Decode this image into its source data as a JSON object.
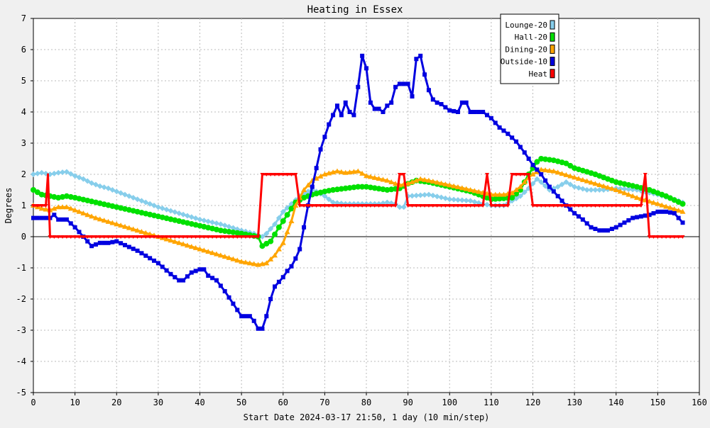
{
  "chart_data": {
    "type": "line",
    "title": "Heating in Essex",
    "xlabel": "Start Date 2024-03-17 21:50, 1 day (10 min/step)",
    "ylabel": "Degrees",
    "xlim": [
      0,
      160
    ],
    "ylim": [
      -5,
      7
    ],
    "xticks": [
      0,
      10,
      20,
      30,
      40,
      50,
      60,
      70,
      80,
      90,
      100,
      110,
      120,
      130,
      140,
      150,
      160
    ],
    "yticks": [
      -5,
      -4,
      -3,
      -2,
      -1,
      0,
      1,
      2,
      3,
      4,
      5,
      6,
      7
    ],
    "grid": true,
    "legend_position": "top-right",
    "series": [
      {
        "name": "Lounge-20",
        "color": "#87ceeb",
        "marker": "diamond",
        "points": [
          [
            0,
            2.0
          ],
          [
            2,
            2.05
          ],
          [
            4,
            2.0
          ],
          [
            6,
            2.05
          ],
          [
            8,
            2.08
          ],
          [
            10,
            1.95
          ],
          [
            12,
            1.85
          ],
          [
            14,
            1.72
          ],
          [
            16,
            1.62
          ],
          [
            18,
            1.55
          ],
          [
            20,
            1.45
          ],
          [
            25,
            1.2
          ],
          [
            30,
            0.95
          ],
          [
            35,
            0.75
          ],
          [
            40,
            0.55
          ],
          [
            45,
            0.4
          ],
          [
            50,
            0.2
          ],
          [
            53,
            0.1
          ],
          [
            55,
            0.0
          ],
          [
            56,
            0.1
          ],
          [
            58,
            0.4
          ],
          [
            60,
            0.8
          ],
          [
            62,
            1.05
          ],
          [
            64,
            1.3
          ],
          [
            66,
            1.45
          ],
          [
            67,
            1.5
          ],
          [
            68,
            1.45
          ],
          [
            70,
            1.3
          ],
          [
            72,
            1.1
          ],
          [
            75,
            1.05
          ],
          [
            80,
            1.05
          ],
          [
            83,
            1.05
          ],
          [
            85,
            1.1
          ],
          [
            87,
            1.05
          ],
          [
            88,
            0.95
          ],
          [
            89,
            0.95
          ],
          [
            90,
            1.3
          ],
          [
            95,
            1.35
          ],
          [
            100,
            1.2
          ],
          [
            105,
            1.15
          ],
          [
            108,
            1.05
          ],
          [
            110,
            1.0
          ],
          [
            113,
            1.0
          ],
          [
            115,
            1.15
          ],
          [
            117,
            1.3
          ],
          [
            119,
            1.55
          ],
          [
            121,
            1.85
          ],
          [
            122,
            1.75
          ],
          [
            124,
            1.5
          ],
          [
            126,
            1.6
          ],
          [
            128,
            1.75
          ],
          [
            130,
            1.6
          ],
          [
            133,
            1.5
          ],
          [
            137,
            1.5
          ],
          [
            140,
            1.55
          ],
          [
            145,
            1.5
          ],
          [
            150,
            1.35
          ],
          [
            155,
            1.15
          ],
          [
            156,
            1.1
          ]
        ]
      },
      {
        "name": "Hall-20",
        "color": "#00e000",
        "marker": "circle",
        "points": [
          [
            0,
            1.5
          ],
          [
            2,
            1.35
          ],
          [
            4,
            1.3
          ],
          [
            6,
            1.25
          ],
          [
            8,
            1.3
          ],
          [
            10,
            1.25
          ],
          [
            15,
            1.1
          ],
          [
            20,
            0.95
          ],
          [
            25,
            0.8
          ],
          [
            30,
            0.65
          ],
          [
            35,
            0.5
          ],
          [
            40,
            0.35
          ],
          [
            45,
            0.2
          ],
          [
            50,
            0.1
          ],
          [
            54,
            0.0
          ],
          [
            55,
            -0.3
          ],
          [
            57,
            -0.15
          ],
          [
            59,
            0.3
          ],
          [
            61,
            0.7
          ],
          [
            63,
            1.1
          ],
          [
            65,
            1.25
          ],
          [
            67,
            1.35
          ],
          [
            70,
            1.45
          ],
          [
            72,
            1.5
          ],
          [
            75,
            1.55
          ],
          [
            78,
            1.6
          ],
          [
            80,
            1.6
          ],
          [
            85,
            1.5
          ],
          [
            88,
            1.55
          ],
          [
            90,
            1.7
          ],
          [
            92,
            1.8
          ],
          [
            95,
            1.75
          ],
          [
            100,
            1.6
          ],
          [
            105,
            1.45
          ],
          [
            108,
            1.3
          ],
          [
            110,
            1.2
          ],
          [
            115,
            1.25
          ],
          [
            117,
            1.5
          ],
          [
            119,
            2.0
          ],
          [
            121,
            2.4
          ],
          [
            122,
            2.5
          ],
          [
            125,
            2.45
          ],
          [
            128,
            2.35
          ],
          [
            130,
            2.2
          ],
          [
            135,
            2.0
          ],
          [
            140,
            1.75
          ],
          [
            145,
            1.6
          ],
          [
            148,
            1.5
          ],
          [
            152,
            1.3
          ],
          [
            156,
            1.05
          ]
        ]
      },
      {
        "name": "Dining-20",
        "color": "#ffa500",
        "marker": "triangle",
        "points": [
          [
            0,
            1.0
          ],
          [
            2,
            0.9
          ],
          [
            4,
            0.85
          ],
          [
            6,
            0.95
          ],
          [
            8,
            0.95
          ],
          [
            10,
            0.85
          ],
          [
            15,
            0.6
          ],
          [
            20,
            0.4
          ],
          [
            25,
            0.2
          ],
          [
            30,
            0.0
          ],
          [
            35,
            -0.2
          ],
          [
            40,
            -0.4
          ],
          [
            45,
            -0.6
          ],
          [
            50,
            -0.8
          ],
          [
            54,
            -0.9
          ],
          [
            56,
            -0.85
          ],
          [
            58,
            -0.6
          ],
          [
            60,
            -0.2
          ],
          [
            62,
            0.5
          ],
          [
            63,
            1.0
          ],
          [
            65,
            1.5
          ],
          [
            67,
            1.8
          ],
          [
            70,
            2.0
          ],
          [
            73,
            2.1
          ],
          [
            75,
            2.05
          ],
          [
            78,
            2.1
          ],
          [
            80,
            1.95
          ],
          [
            85,
            1.8
          ],
          [
            88,
            1.65
          ],
          [
            90,
            1.7
          ],
          [
            93,
            1.85
          ],
          [
            95,
            1.8
          ],
          [
            100,
            1.65
          ],
          [
            105,
            1.5
          ],
          [
            110,
            1.35
          ],
          [
            113,
            1.35
          ],
          [
            115,
            1.4
          ],
          [
            117,
            1.6
          ],
          [
            119,
            1.9
          ],
          [
            120,
            2.0
          ],
          [
            122,
            2.15
          ],
          [
            125,
            2.1
          ],
          [
            130,
            1.9
          ],
          [
            135,
            1.7
          ],
          [
            140,
            1.5
          ],
          [
            145,
            1.25
          ],
          [
            150,
            1.05
          ],
          [
            156,
            0.8
          ]
        ]
      },
      {
        "name": "Outside-10",
        "color": "#0000e0",
        "marker": "square",
        "points": [
          [
            0,
            0.6
          ],
          [
            2,
            0.6
          ],
          [
            4,
            0.6
          ],
          [
            5,
            0.7
          ],
          [
            6,
            0.55
          ],
          [
            8,
            0.55
          ],
          [
            10,
            0.3
          ],
          [
            12,
            0.0
          ],
          [
            14,
            -0.3
          ],
          [
            16,
            -0.2
          ],
          [
            18,
            -0.2
          ],
          [
            20,
            -0.15
          ],
          [
            25,
            -0.45
          ],
          [
            30,
            -0.85
          ],
          [
            33,
            -1.2
          ],
          [
            35,
            -1.4
          ],
          [
            36,
            -1.4
          ],
          [
            38,
            -1.15
          ],
          [
            40,
            -1.05
          ],
          [
            41,
            -1.05
          ],
          [
            42,
            -1.25
          ],
          [
            44,
            -1.4
          ],
          [
            46,
            -1.75
          ],
          [
            48,
            -2.15
          ],
          [
            50,
            -2.55
          ],
          [
            52,
            -2.55
          ],
          [
            53,
            -2.7
          ],
          [
            54,
            -2.95
          ],
          [
            55,
            -2.95
          ],
          [
            56,
            -2.55
          ],
          [
            57,
            -2.0
          ],
          [
            58,
            -1.6
          ],
          [
            60,
            -1.3
          ],
          [
            61,
            -1.1
          ],
          [
            62,
            -0.95
          ],
          [
            63,
            -0.7
          ],
          [
            64,
            -0.4
          ],
          [
            65,
            0.3
          ],
          [
            66,
            1.0
          ],
          [
            67,
            1.6
          ],
          [
            68,
            2.2
          ],
          [
            69,
            2.8
          ],
          [
            70,
            3.2
          ],
          [
            71,
            3.6
          ],
          [
            72,
            3.9
          ],
          [
            73,
            4.2
          ],
          [
            74,
            3.9
          ],
          [
            75,
            4.3
          ],
          [
            76,
            4.0
          ],
          [
            77,
            3.9
          ],
          [
            78,
            4.8
          ],
          [
            79,
            5.8
          ],
          [
            80,
            5.4
          ],
          [
            81,
            4.3
          ],
          [
            82,
            4.1
          ],
          [
            83,
            4.1
          ],
          [
            84,
            4.0
          ],
          [
            85,
            4.2
          ],
          [
            86,
            4.3
          ],
          [
            87,
            4.8
          ],
          [
            88,
            4.9
          ],
          [
            90,
            4.9
          ],
          [
            91,
            4.5
          ],
          [
            92,
            5.7
          ],
          [
            93,
            5.8
          ],
          [
            94,
            5.2
          ],
          [
            95,
            4.7
          ],
          [
            96,
            4.4
          ],
          [
            97,
            4.3
          ],
          [
            98,
            4.25
          ],
          [
            100,
            4.05
          ],
          [
            102,
            4.0
          ],
          [
            103,
            4.3
          ],
          [
            104,
            4.3
          ],
          [
            105,
            4.0
          ],
          [
            108,
            4.0
          ],
          [
            110,
            3.8
          ],
          [
            112,
            3.5
          ],
          [
            114,
            3.3
          ],
          [
            116,
            3.05
          ],
          [
            118,
            2.7
          ],
          [
            120,
            2.3
          ],
          [
            122,
            2.0
          ],
          [
            124,
            1.6
          ],
          [
            126,
            1.3
          ],
          [
            128,
            1.0
          ],
          [
            130,
            0.75
          ],
          [
            132,
            0.55
          ],
          [
            134,
            0.3
          ],
          [
            136,
            0.2
          ],
          [
            138,
            0.2
          ],
          [
            140,
            0.3
          ],
          [
            142,
            0.45
          ],
          [
            144,
            0.6
          ],
          [
            146,
            0.65
          ],
          [
            148,
            0.7
          ],
          [
            150,
            0.8
          ],
          [
            152,
            0.8
          ],
          [
            154,
            0.75
          ],
          [
            155,
            0.6
          ],
          [
            156,
            0.45
          ]
        ]
      },
      {
        "name": "Heat",
        "color": "#ff0000",
        "marker": "triangle-down",
        "step": true,
        "points": [
          [
            0,
            1
          ],
          [
            3,
            1
          ],
          [
            3.5,
            2
          ],
          [
            4,
            0
          ],
          [
            54,
            0
          ],
          [
            55,
            2
          ],
          [
            63,
            2
          ],
          [
            64,
            1
          ],
          [
            87,
            1
          ],
          [
            88,
            2
          ],
          [
            89,
            2
          ],
          [
            90,
            1
          ],
          [
            108,
            1
          ],
          [
            109,
            2
          ],
          [
            110,
            1
          ],
          [
            114,
            1
          ],
          [
            115,
            2
          ],
          [
            119,
            2
          ],
          [
            120,
            1
          ],
          [
            146,
            1
          ],
          [
            147,
            2
          ],
          [
            148,
            0
          ],
          [
            156,
            0
          ]
        ]
      }
    ]
  }
}
